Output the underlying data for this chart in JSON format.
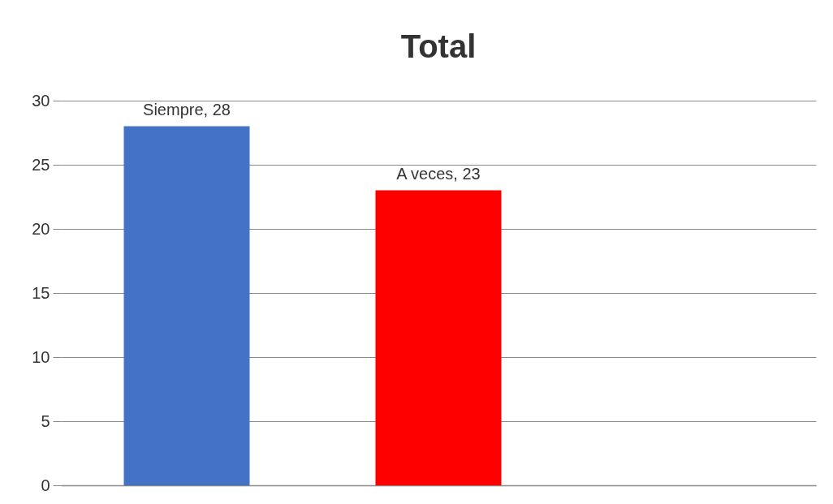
{
  "chart_data": {
    "type": "bar",
    "title": "Total",
    "categories": [
      null,
      null,
      null
    ],
    "values": [
      28,
      23,
      null
    ],
    "colors": [
      "#4472c4",
      "#ff0000",
      null
    ],
    "value_labels": [
      "Siempre, 28",
      "A veces, 23",
      null
    ],
    "ylim": [
      0,
      30
    ],
    "yticks": [
      0,
      5,
      10,
      15,
      20,
      25,
      30
    ],
    "grid": "y",
    "tick_labels": "y"
  }
}
